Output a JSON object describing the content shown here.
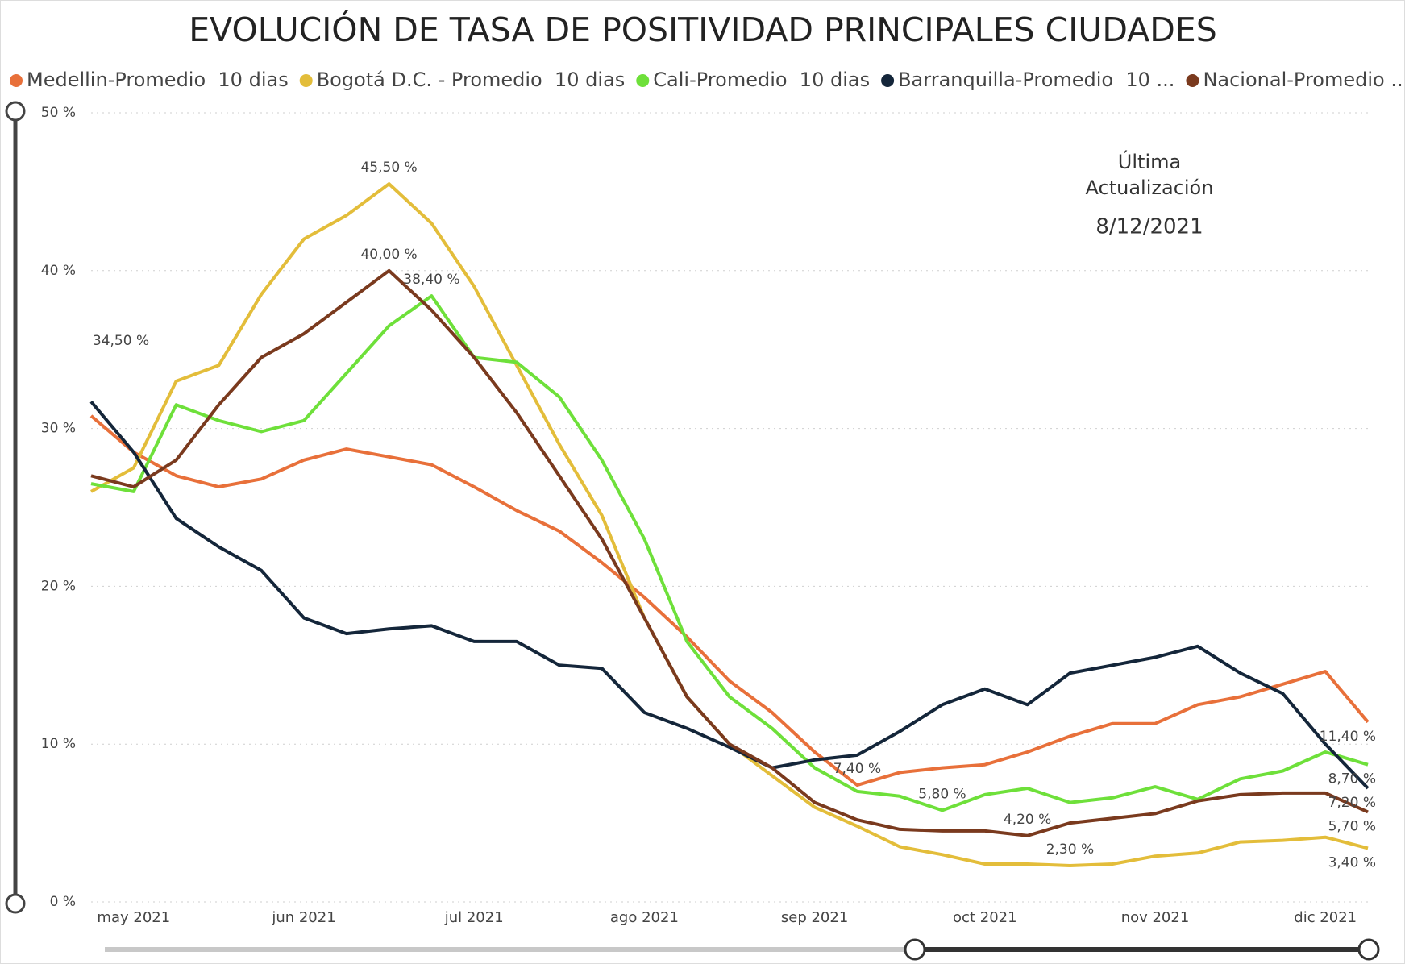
{
  "chart_data": {
    "type": "line",
    "title": "EVOLUCIÓN DE TASA DE POSITIVIDAD PRINCIPALES CIUDADES",
    "annotations": [
      "Última",
      "Actualización",
      "8/12/2021",
      "34,50 %"
    ],
    "categories": [
      null,
      "may 2021",
      null,
      null,
      null,
      "jun 2021",
      null,
      null,
      null,
      "jul 2021",
      null,
      null,
      null,
      "ago 2021",
      null,
      null,
      null,
      "sep 2021",
      null,
      null,
      null,
      "oct 2021",
      null,
      null,
      null,
      "nov 2021",
      null,
      null,
      null,
      "dic 2021",
      null
    ],
    "ylim": [
      0,
      50
    ],
    "yticks": [
      {
        "value": 0,
        "label": "0 %"
      },
      {
        "value": 10,
        "label": "10 %"
      },
      {
        "value": 20,
        "label": "20 %"
      },
      {
        "value": 30,
        "label": "30 %"
      },
      {
        "value": 40,
        "label": "40 %"
      },
      {
        "value": 50,
        "label": "50 %"
      }
    ],
    "grid": true,
    "legend": "top",
    "series": [
      {
        "name": "Medellin-Promedio  10 dias",
        "color": "#e8703a",
        "values": [
          30.8,
          28.5,
          27.0,
          26.3,
          26.8,
          28.0,
          28.7,
          28.2,
          27.7,
          26.3,
          24.8,
          23.5,
          21.5,
          19.3,
          16.8,
          14.0,
          12.0,
          9.5,
          7.4,
          8.2,
          8.5,
          8.7,
          9.5,
          10.5,
          11.3,
          11.3,
          12.5,
          13.0,
          13.8,
          14.6,
          11.4
        ],
        "value_labels": [
          null,
          null,
          null,
          null,
          null,
          null,
          null,
          null,
          null,
          null,
          null,
          null,
          null,
          null,
          null,
          null,
          null,
          null,
          "7,40 %",
          null,
          null,
          null,
          null,
          null,
          null,
          null,
          null,
          null,
          null,
          null,
          "11,40 %"
        ]
      },
      {
        "name": "Bogotá D.C. - Promedio  10 dias",
        "color": "#e3bd3a",
        "values": [
          26.0,
          27.5,
          33.0,
          34.0,
          38.5,
          42.0,
          43.5,
          45.5,
          43.0,
          39.0,
          34.0,
          29.0,
          24.5,
          18.0,
          13.0,
          10.0,
          8.0,
          6.0,
          4.8,
          3.5,
          3.0,
          2.4,
          2.4,
          2.3,
          2.4,
          2.9,
          3.1,
          3.8,
          3.9,
          4.1,
          3.4
        ],
        "value_labels": [
          null,
          null,
          null,
          null,
          null,
          null,
          null,
          "45,50 %",
          null,
          null,
          null,
          null,
          null,
          null,
          null,
          null,
          null,
          null,
          null,
          null,
          null,
          null,
          null,
          "2,30 %",
          null,
          null,
          null,
          null,
          null,
          null,
          "3,40 %"
        ]
      },
      {
        "name": "Cali-Promedio  10 dias",
        "color": "#6ee03a",
        "values": [
          26.5,
          26.0,
          31.5,
          30.5,
          29.8,
          30.5,
          33.5,
          36.5,
          38.4,
          34.5,
          34.2,
          32.0,
          28.0,
          23.0,
          16.5,
          13.0,
          11.0,
          8.5,
          7.0,
          6.7,
          5.8,
          6.8,
          7.2,
          6.3,
          6.6,
          7.3,
          6.5,
          7.8,
          8.3,
          9.5,
          8.7
        ],
        "value_labels": [
          null,
          null,
          null,
          null,
          null,
          null,
          null,
          null,
          "38,40 %",
          null,
          null,
          null,
          null,
          null,
          null,
          null,
          null,
          null,
          null,
          null,
          "5,80 %",
          null,
          null,
          null,
          null,
          null,
          null,
          null,
          null,
          null,
          "8,70 %"
        ]
      },
      {
        "name": "Barranquilla-Promedio  10 ...",
        "color": "#14263a",
        "values": [
          31.7,
          28.5,
          24.3,
          22.5,
          21.0,
          18.0,
          17.0,
          17.3,
          17.5,
          16.5,
          16.5,
          15.0,
          14.8,
          12.0,
          11.0,
          9.8,
          8.5,
          9.0,
          9.3,
          10.8,
          12.5,
          13.5,
          12.5,
          14.5,
          15.0,
          15.5,
          16.2,
          14.5,
          13.2,
          10.0,
          7.2
        ],
        "value_labels": [
          null,
          null,
          null,
          null,
          null,
          null,
          null,
          null,
          null,
          null,
          null,
          null,
          null,
          null,
          null,
          null,
          null,
          null,
          null,
          null,
          null,
          null,
          null,
          null,
          null,
          null,
          null,
          null,
          null,
          null,
          "7,20 %"
        ]
      },
      {
        "name": "Nacional-Promedio ...",
        "color": "#7a3a1e",
        "values": [
          27.0,
          26.3,
          28.0,
          31.5,
          34.5,
          36.0,
          38.0,
          40.0,
          37.5,
          34.5,
          31.0,
          27.0,
          23.0,
          18.0,
          13.0,
          10.0,
          8.5,
          6.3,
          5.2,
          4.6,
          4.5,
          4.5,
          4.2,
          5.0,
          5.3,
          5.6,
          6.4,
          6.8,
          6.9,
          6.9,
          5.7
        ],
        "value_labels": [
          null,
          null,
          null,
          null,
          null,
          null,
          null,
          "40,00 %",
          null,
          null,
          null,
          null,
          null,
          null,
          null,
          null,
          null,
          null,
          null,
          null,
          null,
          null,
          "4,20 %",
          null,
          null,
          null,
          null,
          null,
          null,
          null,
          "5,70 %"
        ]
      }
    ]
  }
}
